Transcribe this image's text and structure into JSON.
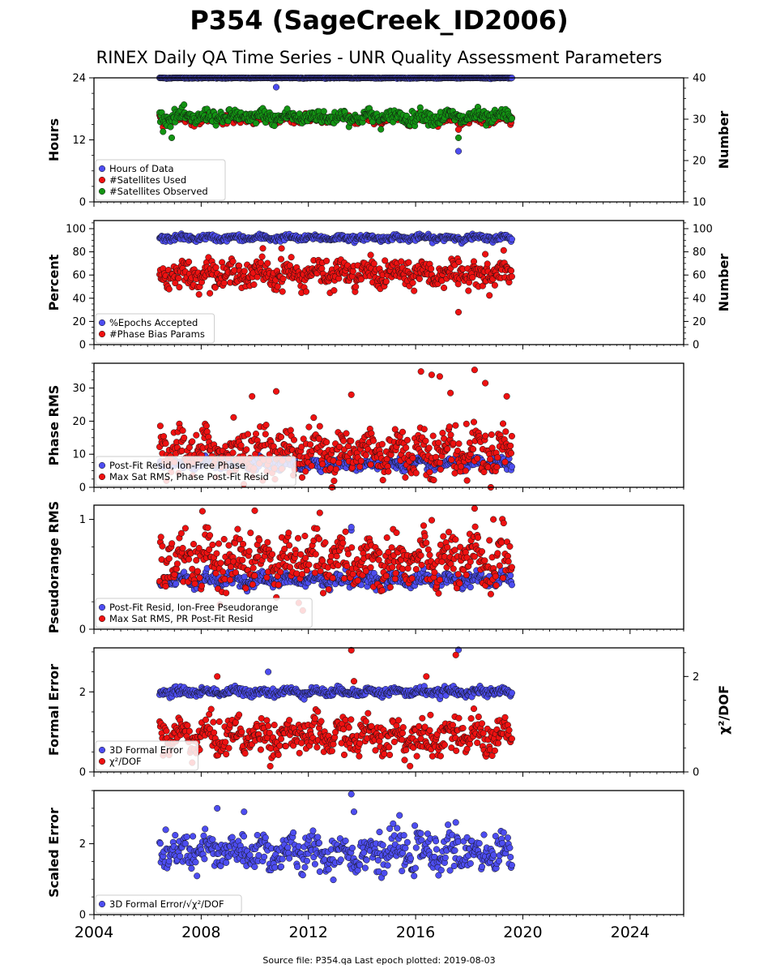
{
  "title": "P354 (SageCreek_ID2006)",
  "subtitle": "RINEX Daily QA Time Series - UNR Quality Assessment Parameters",
  "footer": "Source file: P354.qa Last epoch plotted: 2019-08-03",
  "colors": {
    "blue": "#4d4df0",
    "red": "#ee1111",
    "green": "#139413"
  },
  "chart_data": {
    "type": "scatter",
    "x_axis": {
      "ticks": [
        2004,
        2008,
        2012,
        2016,
        2020,
        2024
      ],
      "range": [
        2004,
        2026
      ]
    },
    "data_span": [
      2006.45,
      2019.59
    ],
    "panels": [
      {
        "ylabel": "Hours",
        "ylabel_right": "Number",
        "yticks": [
          0,
          12,
          24
        ],
        "ylim": [
          0,
          24
        ],
        "yticks_right": [
          10,
          20,
          30,
          40
        ],
        "ylim_right": [
          10,
          40
        ],
        "series": [
          {
            "name": "Hours of Data",
            "color": "blue",
            "axis": "left",
            "base": 24,
            "noise": 0.05,
            "outliers": [
              [
                2010.8,
                22.2
              ],
              [
                2017.6,
                9.8
              ]
            ]
          },
          {
            "name": "#Satellites Used",
            "color": "red",
            "axis": "right",
            "base": 30,
            "noise": 0.5,
            "outliers": [
              [
                2017.6,
                27.5
              ],
              [
                2009.7,
                30.2
              ]
            ]
          },
          {
            "name": "#Satellites Observed",
            "color": "green",
            "axis": "right",
            "base": 30.5,
            "noise": 0.8,
            "outliers": [
              [
                2017.6,
                25.5
              ],
              [
                2006.9,
                25.5
              ]
            ]
          }
        ]
      },
      {
        "ylabel": "Percent",
        "ylabel_right": "Number",
        "yticks": [
          0,
          20,
          40,
          60,
          80,
          100
        ],
        "ylim": [
          0,
          107
        ],
        "yticks_right": [
          0,
          20,
          40,
          60,
          80,
          100
        ],
        "ylim_right": [
          0,
          107
        ],
        "series": [
          {
            "name": "%Epochs Accepted",
            "color": "blue",
            "axis": "left",
            "base": 92,
            "noise": 1.2,
            "outliers": []
          },
          {
            "name": "#Phase Bias Params",
            "color": "red",
            "axis": "right",
            "base": 61,
            "noise": 5.5,
            "outliers": [
              [
                2017.6,
                28
              ],
              [
                2010.3,
                83
              ],
              [
                2011.0,
                83
              ],
              [
                2018.6,
                78
              ]
            ]
          }
        ]
      },
      {
        "ylabel": "Phase RMS",
        "yticks": [
          0,
          10,
          20,
          30
        ],
        "ylim": [
          0,
          37.5
        ],
        "series": [
          {
            "name": "Post-Fit Resid, Ion-Free Phase",
            "color": "blue",
            "axis": "left",
            "base": 7,
            "noise": 0.8,
            "outliers": []
          },
          {
            "name": "Max Sat RMS, Phase Post-Fit Resid",
            "color": "red",
            "axis": "left",
            "base": 11,
            "noise": 3.5,
            "outliers": [
              [
                2016.2,
                35
              ],
              [
                2018.2,
                35.5
              ],
              [
                2016.6,
                34
              ],
              [
                2016.9,
                33.5
              ],
              [
                2018.6,
                31.5
              ],
              [
                2009.9,
                27.5
              ],
              [
                2019.4,
                27.5
              ],
              [
                2017.3,
                28.5
              ],
              [
                2010.8,
                29
              ],
              [
                2013.6,
                28
              ]
            ]
          }
        ]
      },
      {
        "ylabel": "Pseudorange RMS",
        "yticks": [
          0,
          1
        ],
        "ylim": [
          0,
          1.13
        ],
        "series": [
          {
            "name": "Post-Fit Resid, Ion-Free Pseudorange",
            "color": "blue",
            "axis": "left",
            "base": 0.45,
            "noise": 0.03,
            "outliers": [
              [
                2013.6,
                0.9
              ],
              [
                2013.6,
                0.93
              ]
            ]
          },
          {
            "name": "Max Sat RMS, PR Post-Fit Resid",
            "color": "red",
            "axis": "left",
            "base": 0.62,
            "noise": 0.12,
            "outliers": [
              [
                2018.2,
                1.1
              ],
              [
                2010.0,
                1.08
              ],
              [
                2018.9,
                1.0
              ]
            ]
          }
        ]
      },
      {
        "ylabel": "Formal Error",
        "ylabel_right": "χ²/DOF",
        "yticks": [
          0,
          2
        ],
        "ylim": [
          0,
          3.1
        ],
        "yticks_right": [
          0,
          2
        ],
        "ylim_right": [
          0,
          2.6
        ],
        "series": [
          {
            "name": "3D Formal Error",
            "color": "blue",
            "axis": "left",
            "base": 2.0,
            "noise": 0.05,
            "outliers": [
              [
                2010.5,
                2.5
              ],
              [
                2017.6,
                3.05
              ]
            ]
          },
          {
            "name": "χ²/DOF",
            "color": "red",
            "axis": "right",
            "base": 0.75,
            "noise": 0.18,
            "outliers": [
              [
                2013.6,
                2.55
              ],
              [
                2008.6,
                2.0
              ],
              [
                2013.7,
                1.9
              ],
              [
                2016.4,
                2.0
              ],
              [
                2017.5,
                2.45
              ]
            ]
          }
        ]
      },
      {
        "ylabel": "Scaled Error",
        "yticks": [
          0,
          2
        ],
        "ylim": [
          0,
          3.5
        ],
        "series": [
          {
            "name": "3D Formal Error/√χ²/DOF",
            "color": "blue",
            "axis": "left",
            "base": 1.75,
            "noise": 0.25,
            "outliers": [
              [
                2013.6,
                3.4
              ],
              [
                2008.6,
                3.0
              ],
              [
                2013.7,
                2.9
              ],
              [
                2009.6,
                2.9
              ],
              [
                2015.4,
                2.8
              ],
              [
                2017.5,
                2.6
              ]
            ]
          }
        ]
      }
    ]
  }
}
